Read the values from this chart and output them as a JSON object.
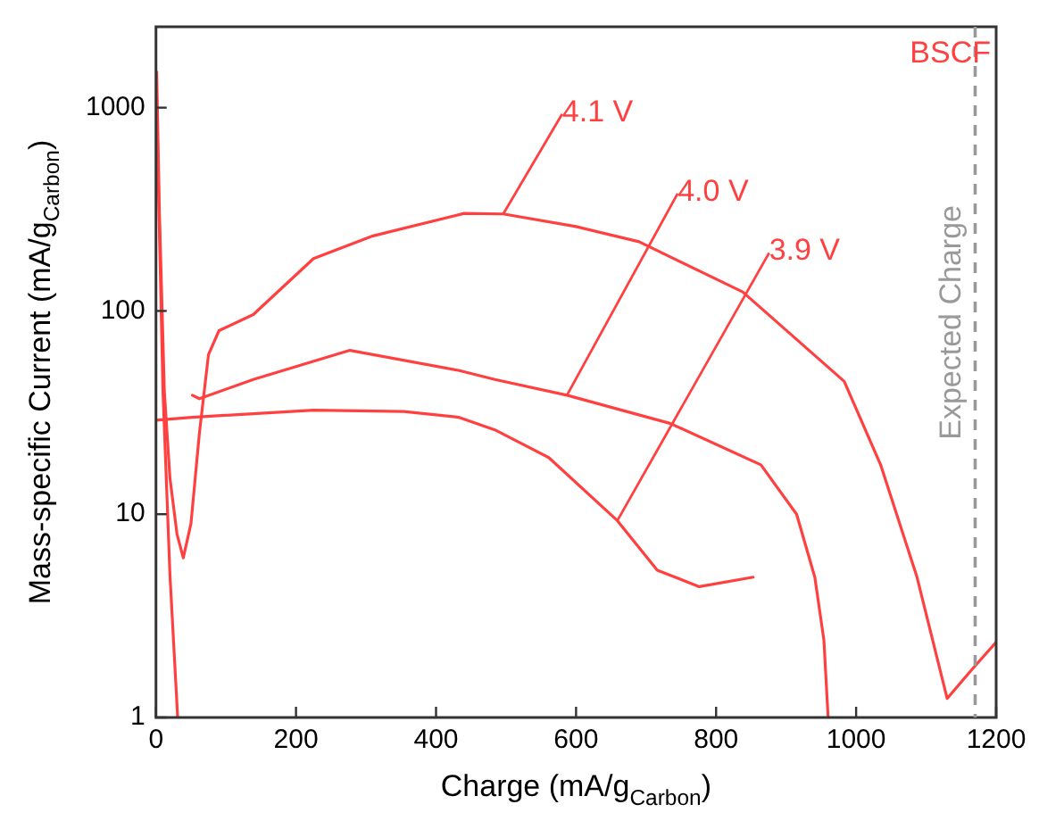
{
  "chart_data": {
    "type": "line",
    "xlabel": "Charge (mA/g$_{Carbon}$)",
    "ylabel": "Mass-specific Current (mA/g$_{Carbon}$)",
    "log": "y",
    "xlim": [
      0,
      1200
    ],
    "xticks": [
      0,
      200,
      400,
      600,
      800,
      1000,
      1200
    ],
    "ylim": [
      1,
      2500
    ],
    "yticks": [
      1,
      10,
      100,
      1000
    ],
    "grid": false,
    "legend": false,
    "series": [
      {
        "color": "#ff4040",
        "x": [
          1,
          5,
          12,
          20,
          30,
          39,
          50,
          62,
          75,
          90,
          139,
          225,
          310,
          440,
          496,
          600,
          690,
          838,
          983,
          1035,
          1087,
          1130,
          1164,
          1200
        ],
        "values": [
          1500,
          300,
          40,
          15,
          8,
          6.1,
          9,
          25,
          61,
          80,
          96,
          181,
          234,
          302,
          300,
          260,
          219,
          124,
          45,
          17.5,
          4.9,
          1.24,
          1.7,
          2.35
        ]
      },
      {
        "color": "#ff4040",
        "x": [
          1,
          10,
          20,
          31,
          40,
          52,
          62,
          139,
          277,
          432,
          484,
          587,
          734,
          864,
          915,
          941,
          954,
          960
        ],
        "values": [
          1000,
          40,
          5,
          1,
          null,
          38.5,
          37,
          46,
          64,
          51,
          46,
          38.5,
          28,
          17.5,
          10,
          4.9,
          2.4,
          1
        ]
      },
      {
        "color": "#ff4040",
        "x": [
          0,
          52,
          225,
          354,
          432,
          484,
          561,
          659,
          716,
          776,
          853
        ],
        "values": [
          29,
          30,
          32.5,
          32,
          30,
          26,
          19,
          9.3,
          5.3,
          4.4,
          4.9
        ]
      }
    ],
    "ref_lines": [
      {
        "axis": "x",
        "value": 1170,
        "label": "Expected Charge",
        "color": "#999999",
        "line_style": "dashed"
      }
    ],
    "annotations": [
      "BSCF",
      {
        "text": "4.1 V",
        "x": 496,
        "y": 300
      },
      {
        "text": "4.0 V",
        "x": 587,
        "y": 38.5
      },
      {
        "text": "3.9 V",
        "x": 659,
        "y": 9.3
      }
    ]
  }
}
